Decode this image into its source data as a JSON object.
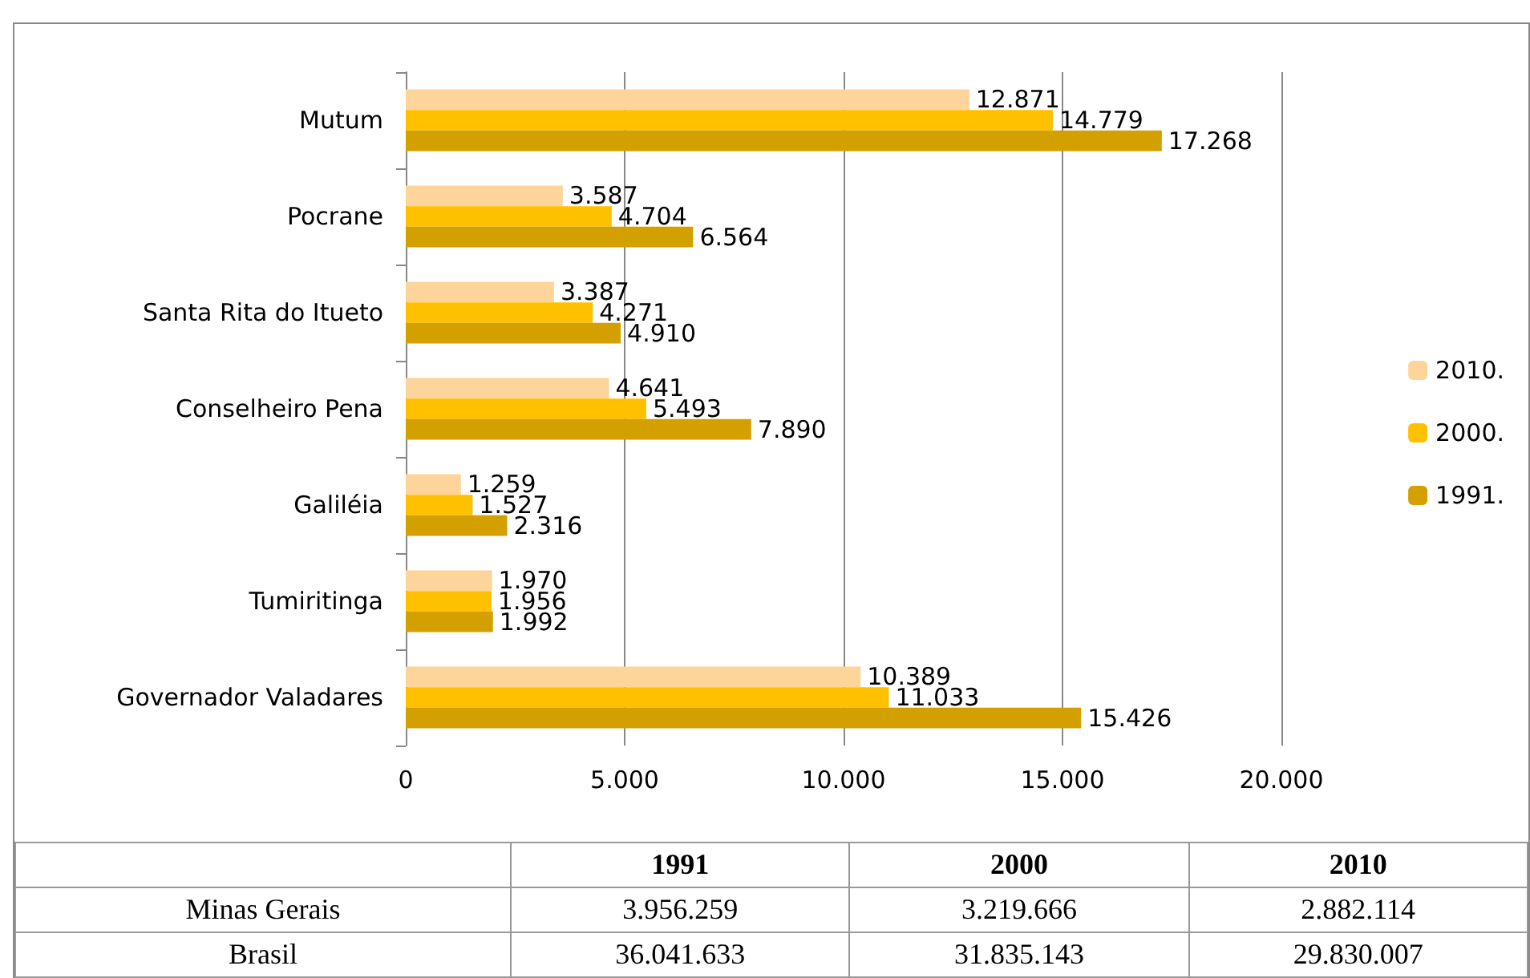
{
  "chart_data": [
    {
      "type": "bar",
      "orientation": "horizontal",
      "categories": [
        "Mutum",
        "Pocrane",
        "Santa Rita do Itueto",
        "Conselheiro Pena",
        "Galiléia",
        "Tumiritinga",
        "Governador Valadares"
      ],
      "series": [
        {
          "name": "2010.",
          "color": "#fdd59b",
          "values": [
            12871,
            3587,
            3387,
            4641,
            1259,
            1970,
            10389
          ],
          "value_labels": [
            "12.871",
            "3.587",
            "3.387",
            "4.641",
            "1.259",
            "1.970",
            "10.389"
          ]
        },
        {
          "name": "2000.",
          "color": "#ffc000",
          "values": [
            14779,
            4704,
            4271,
            5493,
            1527,
            1956,
            11033
          ],
          "value_labels": [
            "14.779",
            "4.704",
            "4.271",
            "5.493",
            "1.527",
            "1.956",
            "11.033"
          ]
        },
        {
          "name": "1991.",
          "color": "#d4a000",
          "values": [
            17268,
            6564,
            4910,
            7890,
            2316,
            1992,
            15426
          ],
          "value_labels": [
            "17.268",
            "6.564",
            "4.910",
            "7.890",
            "2.316",
            "1.992",
            "15.426"
          ]
        }
      ],
      "xlim": [
        0,
        20000
      ],
      "xticks": [
        0,
        {
          "value": 5000,
          "label": "5.000"
        },
        {
          "value": 10000,
          "label": "10.000"
        },
        {
          "value": 15000,
          "label": "15.000"
        },
        {
          "value": 20000,
          "label": "20.000"
        }
      ],
      "grid": "x",
      "legend": "right"
    },
    {
      "type": "other",
      "categories": [
        "1991",
        "2000",
        "2010"
      ],
      "y_categories": [
        "Minas Gerais",
        "Brasil"
      ],
      "cell_labels": [
        [
          "3.956.259",
          "3.219.666",
          "2.882.114"
        ],
        [
          "36.041.633",
          "31.835.143",
          "29.830.007"
        ]
      ]
    }
  ]
}
